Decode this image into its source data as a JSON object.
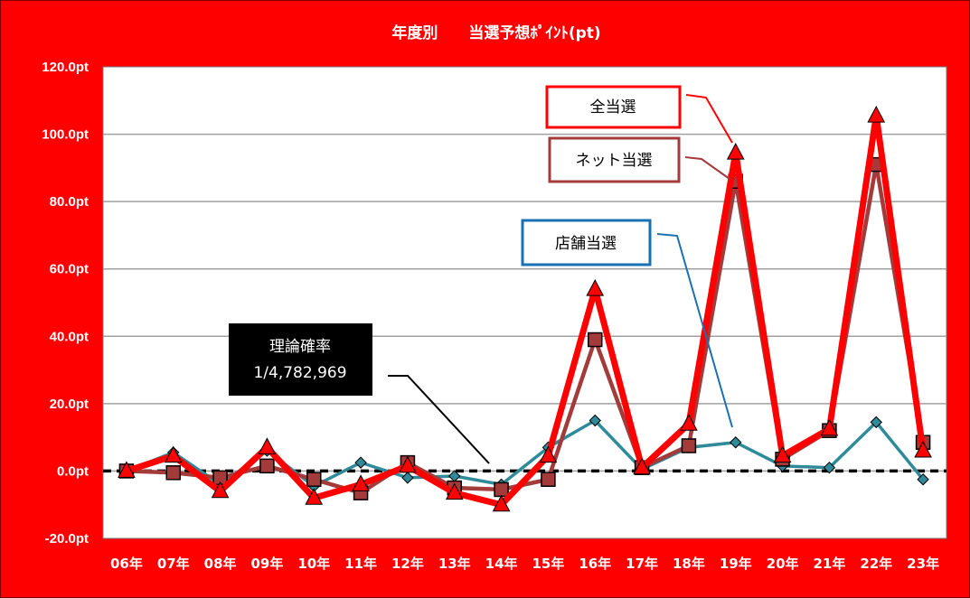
{
  "chart_data": {
    "type": "line",
    "title": "年度別　　当選予想ﾎﾟｲﾝﾄ(pt)",
    "xlabel": "",
    "ylabel": "",
    "categories": [
      "06年",
      "07年",
      "08年",
      "09年",
      "10年",
      "11年",
      "12年",
      "13年",
      "14年",
      "15年",
      "16年",
      "17年",
      "18年",
      "19年",
      "20年",
      "21年",
      "22年",
      "23年"
    ],
    "ylim": [
      -20,
      120
    ],
    "yticks": [
      -20,
      0,
      20,
      40,
      60,
      80,
      100,
      120
    ],
    "ytick_labels": [
      "-20.0pt",
      "0.0pt",
      "20.0pt",
      "40.0pt",
      "60.0pt",
      "80.0pt",
      "100.0pt",
      "120.0pt"
    ],
    "grid": true,
    "legend": "callouts",
    "series": [
      {
        "name": "全当選",
        "color": "#ff0000",
        "marker": "triangle",
        "values": [
          0,
          4.5,
          -6,
          7,
          -8,
          -4,
          1.5,
          -6.5,
          -10,
          4.5,
          54,
          1,
          14,
          94.5,
          4.5,
          12.5,
          105.5,
          6
        ]
      },
      {
        "name": "ネット当選",
        "color": "#a33b3b",
        "marker": "square",
        "values": [
          0,
          -0.5,
          -2,
          1.5,
          -2.5,
          -6.5,
          2.5,
          -5,
          -5.5,
          -2.5,
          39,
          1,
          7.5,
          86,
          3.5,
          12,
          91,
          8.5
        ]
      },
      {
        "name": "店舗当選",
        "color": "#2f8a9a",
        "marker": "diamond",
        "values": [
          0,
          5.5,
          -4,
          6,
          -4.5,
          2.5,
          -2,
          -1.5,
          -4,
          7,
          15,
          0.5,
          7,
          8.5,
          1.5,
          1,
          14.5,
          -2.5
        ]
      }
    ],
    "reference_line": {
      "value": 0,
      "style": "dashed"
    },
    "annotation": {
      "line1": "理論確率",
      "line2": "1/4,782,969"
    }
  },
  "colors": {
    "background": "#ff0000",
    "text": "#ffffff",
    "grid": "#a0a0a0"
  }
}
